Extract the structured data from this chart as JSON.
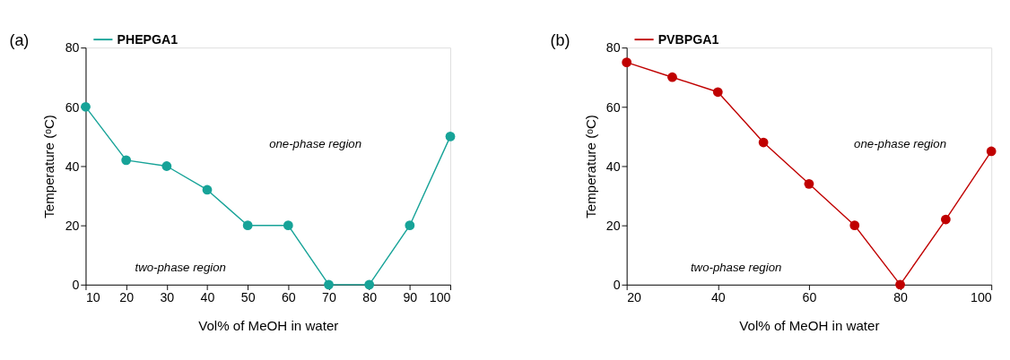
{
  "chart_data": [
    {
      "type": "line",
      "xlabel": "Vol% of MeOH in water",
      "ylabel": "Temperature (ᵒC)",
      "x": [
        10,
        20,
        30,
        40,
        50,
        60,
        70,
        80,
        90,
        100
      ],
      "series": [
        {
          "name": "PHEPGA1",
          "color": "#17a398",
          "values": [
            60,
            42,
            40,
            32,
            20,
            20,
            0,
            0,
            20,
            50
          ]
        }
      ],
      "xlim": [
        10,
        100
      ],
      "xticks": [
        10,
        20,
        30,
        40,
        50,
        60,
        70,
        80,
        90,
        100
      ],
      "ylim": [
        0,
        80
      ],
      "yticks": [
        0,
        20,
        40,
        60,
        80
      ],
      "annotations": [
        "(a)",
        "one-phase region",
        "two-phase region"
      ],
      "legend": "top left",
      "marker": "circle",
      "line_style": "solid",
      "grid": false
    },
    {
      "type": "line",
      "xlabel": "Vol% of MeOH in water",
      "ylabel": "Temperature (ᵒC)",
      "x": [
        20,
        30,
        40,
        50,
        60,
        70,
        80,
        90,
        100
      ],
      "series": [
        {
          "name": "PVBPGA1",
          "color": "#c00000",
          "values": [
            75,
            70,
            65,
            48,
            34,
            20,
            0,
            22,
            45
          ]
        }
      ],
      "xlim": [
        20,
        100
      ],
      "xticks": [
        20,
        40,
        60,
        80,
        100
      ],
      "ylim": [
        0,
        80
      ],
      "yticks": [
        0,
        20,
        40,
        60,
        80
      ],
      "annotations": [
        "(b)",
        "one-phase region",
        "two-phase region"
      ],
      "legend": "top left",
      "marker": "circle",
      "line_style": "solid",
      "grid": false
    }
  ]
}
